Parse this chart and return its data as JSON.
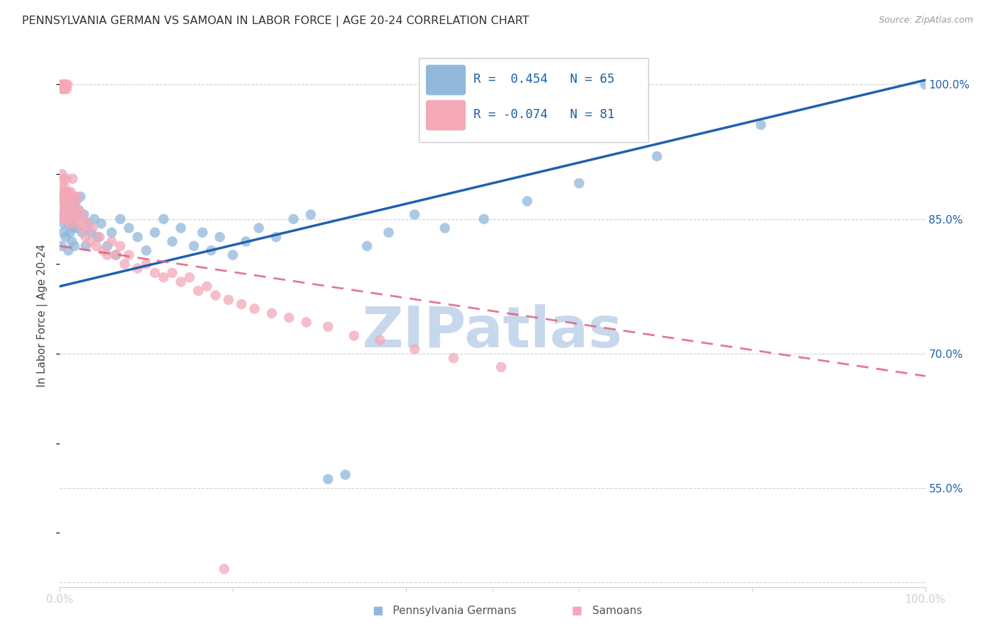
{
  "title": "PENNSYLVANIA GERMAN VS SAMOAN IN LABOR FORCE | AGE 20-24 CORRELATION CHART",
  "source": "Source: ZipAtlas.com",
  "ylabel": "In Labor Force | Age 20-24",
  "ylabel_ticks": [
    "55.0%",
    "70.0%",
    "85.0%",
    "100.0%"
  ],
  "ylabel_tick_vals": [
    0.55,
    0.7,
    0.85,
    1.0
  ],
  "xmin": 0.0,
  "xmax": 1.0,
  "ymin": 0.44,
  "ymax": 1.045,
  "blue_R": 0.454,
  "blue_N": 65,
  "pink_R": -0.074,
  "pink_N": 81,
  "legend_label_blue": "Pennsylvania Germans",
  "legend_label_pink": "Samoans",
  "blue_color": "#90b8dc",
  "pink_color": "#f4a8b8",
  "blue_line_color": "#2060b0",
  "pink_line_color": "#e06080",
  "blue_line_start_y": 0.775,
  "blue_line_end_y": 1.005,
  "pink_line_start_y": 0.82,
  "pink_line_end_y": 0.675,
  "watermark_text": "ZIPatlas",
  "watermark_color": "#c8d8ec",
  "blue_points_x": [
    0.002,
    0.003,
    0.004,
    0.004,
    0.005,
    0.006,
    0.006,
    0.007,
    0.008,
    0.009,
    0.01,
    0.01,
    0.011,
    0.012,
    0.013,
    0.014,
    0.015,
    0.016,
    0.017,
    0.018,
    0.019,
    0.02,
    0.022,
    0.024,
    0.026,
    0.028,
    0.03,
    0.033,
    0.036,
    0.04,
    0.044,
    0.048,
    0.055,
    0.06,
    0.065,
    0.07,
    0.08,
    0.09,
    0.1,
    0.11,
    0.12,
    0.13,
    0.14,
    0.155,
    0.165,
    0.175,
    0.185,
    0.2,
    0.215,
    0.23,
    0.25,
    0.27,
    0.29,
    0.31,
    0.33,
    0.355,
    0.38,
    0.41,
    0.445,
    0.49,
    0.54,
    0.6,
    0.69,
    0.81,
    1.0
  ],
  "blue_points_y": [
    0.82,
    0.855,
    0.87,
    0.835,
    0.845,
    0.88,
    0.86,
    0.83,
    0.855,
    0.865,
    0.815,
    0.845,
    0.875,
    0.835,
    0.85,
    0.825,
    0.84,
    0.865,
    0.82,
    0.85,
    0.87,
    0.84,
    0.86,
    0.875,
    0.835,
    0.855,
    0.82,
    0.845,
    0.835,
    0.85,
    0.83,
    0.845,
    0.82,
    0.835,
    0.81,
    0.85,
    0.84,
    0.83,
    0.815,
    0.835,
    0.85,
    0.825,
    0.84,
    0.82,
    0.835,
    0.815,
    0.83,
    0.81,
    0.825,
    0.84,
    0.83,
    0.85,
    0.855,
    0.56,
    0.565,
    0.82,
    0.835,
    0.855,
    0.84,
    0.85,
    0.87,
    0.89,
    0.92,
    0.955,
    1.0
  ],
  "pink_points_x": [
    0.001,
    0.002,
    0.002,
    0.003,
    0.003,
    0.004,
    0.004,
    0.005,
    0.005,
    0.006,
    0.006,
    0.007,
    0.007,
    0.008,
    0.008,
    0.009,
    0.01,
    0.01,
    0.011,
    0.012,
    0.012,
    0.013,
    0.014,
    0.015,
    0.015,
    0.016,
    0.017,
    0.018,
    0.019,
    0.02,
    0.021,
    0.022,
    0.024,
    0.026,
    0.028,
    0.03,
    0.032,
    0.035,
    0.038,
    0.042,
    0.046,
    0.05,
    0.055,
    0.06,
    0.065,
    0.07,
    0.075,
    0.08,
    0.09,
    0.1,
    0.11,
    0.12,
    0.13,
    0.14,
    0.15,
    0.16,
    0.17,
    0.18,
    0.195,
    0.21,
    0.225,
    0.245,
    0.265,
    0.285,
    0.31,
    0.34,
    0.37,
    0.41,
    0.455,
    0.51,
    0.002,
    0.003,
    0.003,
    0.004,
    0.004,
    0.005,
    0.006,
    0.007,
    0.008,
    0.009,
    0.19
  ],
  "pink_points_y": [
    0.87,
    0.89,
    0.855,
    0.9,
    0.875,
    0.85,
    0.88,
    0.895,
    0.865,
    0.885,
    0.86,
    0.875,
    0.85,
    0.87,
    0.895,
    0.855,
    0.88,
    0.86,
    0.875,
    0.845,
    0.865,
    0.88,
    0.855,
    0.875,
    0.895,
    0.86,
    0.85,
    0.87,
    0.855,
    0.875,
    0.845,
    0.86,
    0.855,
    0.84,
    0.85,
    0.83,
    0.845,
    0.825,
    0.84,
    0.82,
    0.83,
    0.815,
    0.81,
    0.825,
    0.81,
    0.82,
    0.8,
    0.81,
    0.795,
    0.8,
    0.79,
    0.785,
    0.79,
    0.78,
    0.785,
    0.77,
    0.775,
    0.765,
    0.76,
    0.755,
    0.75,
    0.745,
    0.74,
    0.735,
    0.73,
    0.72,
    0.715,
    0.705,
    0.695,
    0.685,
    1.0,
    1.0,
    0.995,
    1.0,
    0.995,
    1.0,
    0.995,
    1.0,
    0.995,
    1.0,
    0.46
  ]
}
